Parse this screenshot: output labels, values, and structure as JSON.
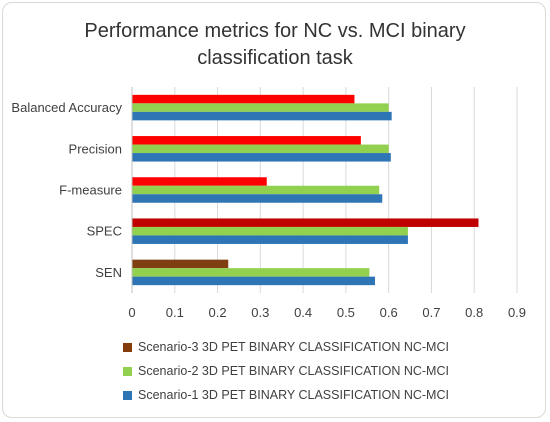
{
  "chart_data": {
    "type": "bar",
    "orientation": "horizontal",
    "title_lines": [
      "Performance metrics for NC vs. MCI binary",
      "classification task"
    ],
    "categories": [
      "Balanced Accuracy",
      "Precision",
      "F-measure",
      "SPEC",
      "SEN"
    ],
    "series": [
      {
        "name": "Scenario-3 3D PET BINARY CLASSIFICATION NC-MCI",
        "color": "#ff0000",
        "colors": [
          "#ff0000",
          "#ff0000",
          "#ff0000",
          "#c00000",
          "#7f3f10"
        ],
        "values": [
          0.52,
          0.535,
          0.315,
          0.81,
          0.225
        ]
      },
      {
        "name": "Scenario-2 3D PET BINARY CLASSIFICATION NC-MCI",
        "color": "#92d050",
        "values": [
          0.6,
          0.6,
          0.578,
          0.645,
          0.555
        ]
      },
      {
        "name": "Scenario-1 3D PET BINARY CLASSIFICATION NC-MCI",
        "color": "#2e75b6",
        "values": [
          0.607,
          0.605,
          0.585,
          0.645,
          0.568
        ]
      }
    ],
    "legend_order": [
      0,
      1,
      2
    ],
    "legend_colors": [
      "#843c0c",
      "#92d050",
      "#2e75b6"
    ],
    "xlim": [
      0,
      0.9
    ],
    "xticks": [
      "0",
      "0.1",
      "0.2",
      "0.3",
      "0.4",
      "0.5",
      "0.6",
      "0.7",
      "0.8",
      "0.9"
    ],
    "grid": true,
    "legend_position": "bottom"
  }
}
